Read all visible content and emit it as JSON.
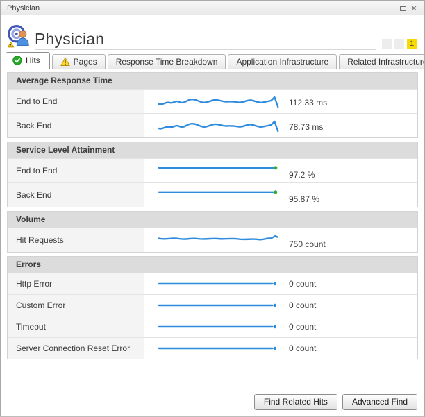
{
  "window": {
    "titlebar_text": "Physician",
    "controls": {
      "maximize": "maximize",
      "close": "✕"
    }
  },
  "header": {
    "title": "Physician",
    "status_boxes": [
      {
        "label": "",
        "alert": false
      },
      {
        "label": "",
        "alert": false
      },
      {
        "label": "1",
        "alert": true
      }
    ]
  },
  "tabs": [
    {
      "label": "Hits",
      "icon": "check",
      "active": true
    },
    {
      "label": "Pages",
      "icon": "warning",
      "active": false
    },
    {
      "label": "Response Time Breakdown",
      "icon": null,
      "active": false
    },
    {
      "label": "Application Infrastructure",
      "icon": null,
      "active": false
    },
    {
      "label": "Related Infrastructure",
      "icon": null,
      "active": false
    }
  ],
  "sections": [
    {
      "title": "Average Response Time",
      "rows": [
        {
          "label": "End to End",
          "value": "112.33 ms",
          "spark": "wavy-down"
        },
        {
          "label": "Back End",
          "value": "78.73 ms",
          "spark": "wavy-down"
        }
      ]
    },
    {
      "title": "Service Level Attainment",
      "rows": [
        {
          "label": "End to End",
          "value": "97.2 %",
          "spark": "level-dot-wave"
        },
        {
          "label": "Back End",
          "value": "95.87 %",
          "spark": "level-dot"
        }
      ]
    },
    {
      "title": "Volume",
      "rows": [
        {
          "label": "Hit Requests",
          "value": "750 count",
          "spark": "wavy-flat"
        }
      ]
    },
    {
      "title": "Errors",
      "rows": [
        {
          "label": "Http Error",
          "value": "0 count",
          "spark": "flat"
        },
        {
          "label": "Custom Error",
          "value": "0 count",
          "spark": "flat"
        },
        {
          "label": "Timeout",
          "value": "0 count",
          "spark": "flat"
        },
        {
          "label": "Server Connection Reset Error",
          "value": "0 count",
          "spark": "flat"
        }
      ]
    }
  ],
  "footer": {
    "buttons": [
      "Find Related Hits",
      "Advanced Find"
    ]
  },
  "colors": {
    "sparkline_blue": "#2f8bdd",
    "sla_dot_green": "#2fae36",
    "alert_yellow": "#f8d900",
    "section_header_bg": "#dcdcdc"
  }
}
